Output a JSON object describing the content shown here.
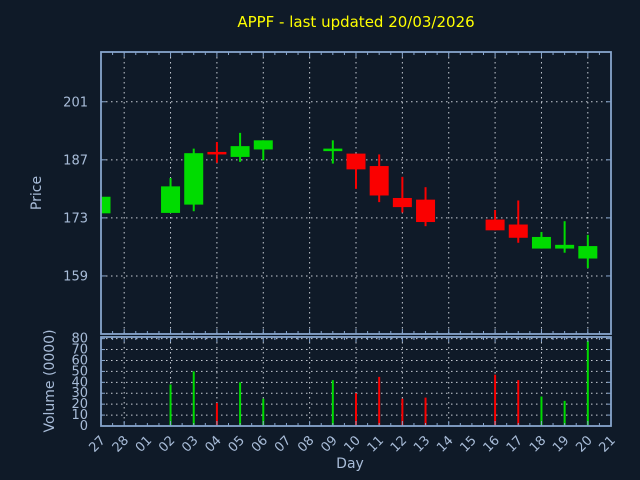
{
  "title": {
    "text": "APPF - last updated 20/03/2026"
  },
  "colors": {
    "background": "#0f1a28",
    "axis": "#87a5cc",
    "grid": "#c7ccd4",
    "label": "#a8bcd8",
    "title": "#ffff00",
    "up": "#00dc00",
    "down": "#fa0000"
  },
  "axes": {
    "price": {
      "label": "Price",
      "ticks": [
        159,
        173,
        187,
        201
      ]
    },
    "volume": {
      "label": "Volume (0000)",
      "ticks": [
        0,
        10,
        20,
        30,
        40,
        50,
        60,
        70,
        80
      ]
    },
    "x": {
      "label": "Day"
    }
  },
  "chart_data": {
    "type": "candlestick_with_volume",
    "title": "APPF - last updated 20/03/2026",
    "xlabel": "Day",
    "ylabel": "Price",
    "volume_ylabel": "Volume (0000)",
    "legend": "none",
    "grid": "dotted, vertical lines on every second day, horizontal on labeled ticks",
    "x_ticks": [
      "27",
      "28",
      "01",
      "02",
      "03",
      "04",
      "05",
      "06",
      "07",
      "08",
      "09",
      "10",
      "11",
      "12",
      "13",
      "14",
      "15",
      "16",
      "17",
      "18",
      "19",
      "20",
      "21"
    ],
    "price_yticks": [
      159,
      173,
      187,
      201
    ],
    "price_ylim": [
      145,
      213
    ],
    "volume_yticks": [
      0,
      10,
      20,
      30,
      40,
      50,
      60,
      70,
      80
    ],
    "volume_ylim": [
      0,
      81.5
    ],
    "candles": [
      {
        "day": "27",
        "open": 174.1,
        "high": 178.1,
        "low": 174.1,
        "close": 178.1,
        "volume": null,
        "direction": "up",
        "clipped_at_left_edge": true
      },
      {
        "day": "02",
        "open": 174.2,
        "high": 182.6,
        "low": 174.2,
        "close": 180.6,
        "volume": 38,
        "direction": "up"
      },
      {
        "day": "03",
        "open": 176.2,
        "high": 189.7,
        "low": 174.6,
        "close": 188.6,
        "volume": 50,
        "direction": "up"
      },
      {
        "day": "04",
        "open": 188.6,
        "high": 191.3,
        "low": 186.3,
        "close": 188.6,
        "volume": 21,
        "direction": "down"
      },
      {
        "day": "05",
        "open": 187.7,
        "high": 193.5,
        "low": 186.5,
        "close": 190.3,
        "volume": 40,
        "direction": "up"
      },
      {
        "day": "06",
        "open": 189.5,
        "high": 191.7,
        "low": 186.9,
        "close": 191.7,
        "volume": 25,
        "direction": "up"
      },
      {
        "day": "09",
        "open": 189.4,
        "high": 191.7,
        "low": 186.1,
        "close": 189.4,
        "volume": 42,
        "direction": "up"
      },
      {
        "day": "10",
        "open": 188.5,
        "high": 188.5,
        "low": 180.0,
        "close": 184.7,
        "volume": 30,
        "direction": "down"
      },
      {
        "day": "11",
        "open": 185.5,
        "high": 188.3,
        "low": 176.8,
        "close": 178.4,
        "volume": 45,
        "direction": "down"
      },
      {
        "day": "12",
        "open": 177.8,
        "high": 182.9,
        "low": 174.3,
        "close": 175.6,
        "volume": 25,
        "direction": "down"
      },
      {
        "day": "13",
        "open": 177.4,
        "high": 180.4,
        "low": 171.0,
        "close": 172.0,
        "volume": 26,
        "direction": "down"
      },
      {
        "day": "16",
        "open": 172.6,
        "high": 174.9,
        "low": 170.0,
        "close": 170.0,
        "volume": 47,
        "direction": "down"
      },
      {
        "day": "17",
        "open": 171.4,
        "high": 177.2,
        "low": 167.0,
        "close": 168.2,
        "volume": 42,
        "direction": "down"
      },
      {
        "day": "18",
        "open": 165.6,
        "high": 169.6,
        "low": 165.6,
        "close": 168.4,
        "volume": 27,
        "direction": "up"
      },
      {
        "day": "19",
        "open": 165.6,
        "high": 172.2,
        "low": 164.6,
        "close": 166.5,
        "volume": 23,
        "direction": "up"
      },
      {
        "day": "20",
        "open": 163.2,
        "high": 168.9,
        "low": 160.9,
        "close": 166.2,
        "volume": 78,
        "direction": "up"
      }
    ]
  }
}
